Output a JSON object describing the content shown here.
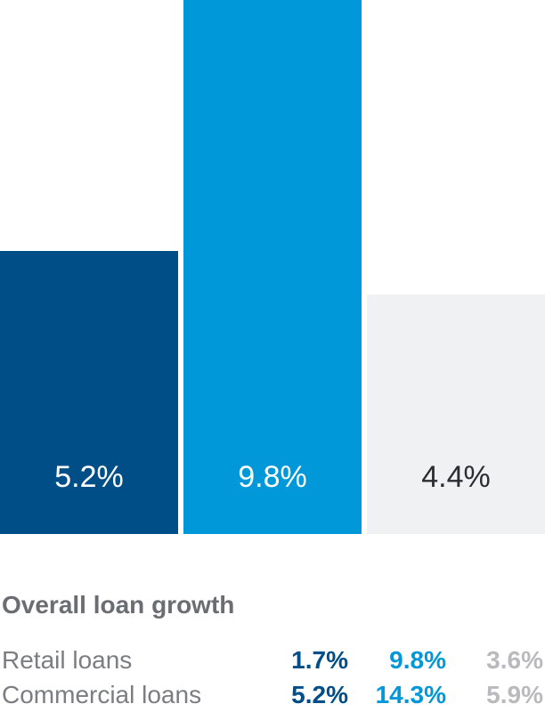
{
  "chart_data": {
    "type": "bar",
    "categories": [
      "",
      "",
      ""
    ],
    "values": [
      5.2,
      9.8,
      4.4
    ],
    "value_labels": [
      "5.2%",
      "9.8%",
      "4.4%"
    ],
    "colors": [
      "#004e87",
      "#0098d8",
      "#f0f1f3"
    ],
    "label_colors": [
      "#ffffff",
      "#ffffff",
      "#2b2d30"
    ],
    "ylim": [
      0,
      9.8
    ],
    "grid": false,
    "title": "",
    "xlabel": "",
    "ylabel": ""
  },
  "table": {
    "title": "Overall loan growth",
    "rows": [
      {
        "label": "Retail loans",
        "values": [
          "1.7%",
          "9.8%",
          "3.6%"
        ]
      },
      {
        "label": "Commercial loans",
        "values": [
          "5.2%",
          "14.3%",
          "5.9%"
        ]
      }
    ],
    "value_colors": [
      "#004e87",
      "#0098d8",
      "#b8babd"
    ]
  }
}
